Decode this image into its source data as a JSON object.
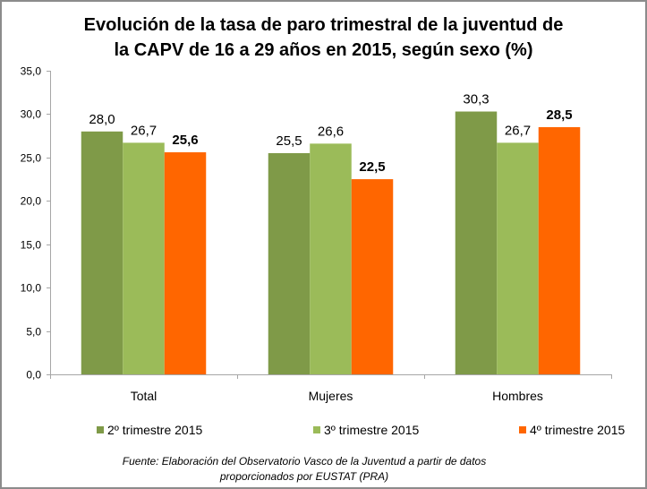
{
  "chart_data": {
    "type": "bar",
    "title_lines": [
      "Evolución de la tasa de paro trimestral de la juventud de",
      "la CAPV de 16 a 29 años en 2015, según sexo (%)"
    ],
    "categories": [
      "Total",
      "Mujeres",
      "Hombres"
    ],
    "series": [
      {
        "name": "2º trimestre 2015",
        "color": "#7f9a48",
        "values": [
          28.0,
          25.5,
          30.3
        ],
        "labels": [
          "28,0",
          "25,5",
          "30,3"
        ],
        "bold": false
      },
      {
        "name": "3º trimestre 2015",
        "color": "#9bbb59",
        "values": [
          26.7,
          26.6,
          26.7
        ],
        "labels": [
          "26,7",
          "26,6",
          "26,7"
        ],
        "bold": false
      },
      {
        "name": "4º trimestre 2015",
        "color": "#ff6600",
        "values": [
          25.6,
          22.5,
          28.5
        ],
        "labels": [
          "25,6",
          "22,5",
          "28,5"
        ],
        "bold": true
      }
    ],
    "ylim": [
      0,
      35
    ],
    "yticks": [
      "0,0",
      "5,0",
      "10,0",
      "15,0",
      "20,0",
      "25,0",
      "30,0",
      "35,0"
    ],
    "xlabel": "",
    "ylabel": "",
    "grid": false,
    "legend_position": "bottom",
    "source_lines": [
      "Fuente: Elaboración del Observatorio Vasco de la Juventud a partir de  datos",
      "proporcionados por EUSTAT (PRA)"
    ]
  }
}
